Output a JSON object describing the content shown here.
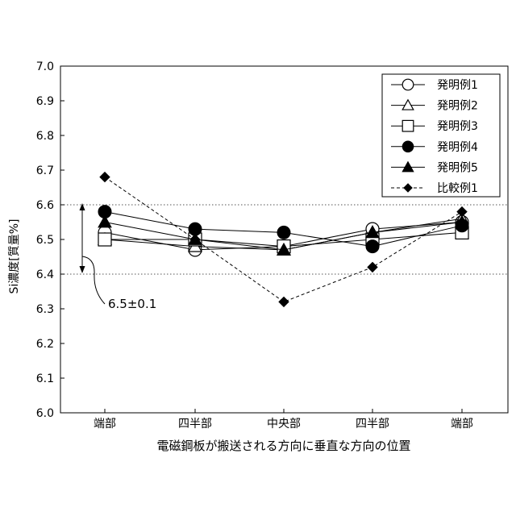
{
  "chart_data": {
    "type": "line",
    "xlabel": "電磁鋼板が搬送される方向に垂直な方向の位置",
    "ylabel": "Si濃度[質量%]",
    "categories": [
      "端部",
      "四半部",
      "中央部",
      "四半部",
      "端部"
    ],
    "ylim": [
      6.0,
      7.0
    ],
    "yticks": [
      "6.0",
      "6.1",
      "6.2",
      "6.3",
      "6.4",
      "6.5",
      "6.6",
      "6.7",
      "6.8",
      "6.9",
      "7.0"
    ],
    "legend_position": "top-right",
    "reference_lines": [
      6.4,
      6.6
    ],
    "annotation": "6.5±0.1",
    "series": [
      {
        "name": "発明例1",
        "marker": "circle-open",
        "line": "solid",
        "values": [
          6.52,
          6.47,
          6.48,
          6.53,
          6.55
        ]
      },
      {
        "name": "発明例2",
        "marker": "triangle-open",
        "line": "solid",
        "values": [
          6.5,
          6.48,
          6.47,
          6.52,
          6.56
        ]
      },
      {
        "name": "発明例3",
        "marker": "square-open",
        "line": "solid",
        "values": [
          6.5,
          6.5,
          6.48,
          6.5,
          6.52
        ]
      },
      {
        "name": "発明例4",
        "marker": "circle-filled",
        "line": "solid",
        "values": [
          6.58,
          6.53,
          6.52,
          6.48,
          6.54
        ]
      },
      {
        "name": "発明例5",
        "marker": "triangle-filled",
        "line": "solid",
        "values": [
          6.55,
          6.5,
          6.47,
          6.52,
          6.55
        ]
      },
      {
        "name": "比較例1",
        "marker": "diamond-filled",
        "line": "dashed",
        "values": [
          6.68,
          6.5,
          6.32,
          6.42,
          6.58
        ]
      }
    ]
  }
}
